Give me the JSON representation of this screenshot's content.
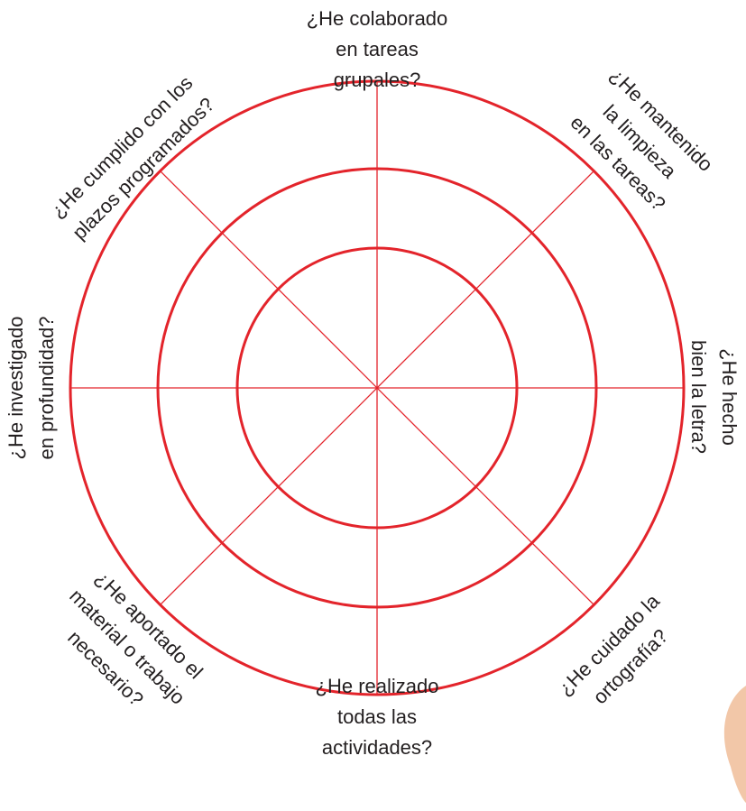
{
  "labels": [
    [
      "¿He colaborado",
      "en tareas",
      "grupales?"
    ],
    [
      "¿He mantenido",
      "la limpieza",
      "en las tareas?"
    ],
    [
      "¿He hecho",
      "bien la letra?"
    ],
    [
      "¿He cuidado la",
      "ortografía?"
    ],
    [
      "¿He realizado",
      "todas las",
      "actividades?"
    ],
    [
      "¿He aportado el",
      "material o trabajo",
      "necesario?"
    ],
    [
      "¿He investigado",
      "en profundidad?"
    ],
    [
      "¿He cumplido con los",
      "plazos programados?"
    ]
  ]
}
